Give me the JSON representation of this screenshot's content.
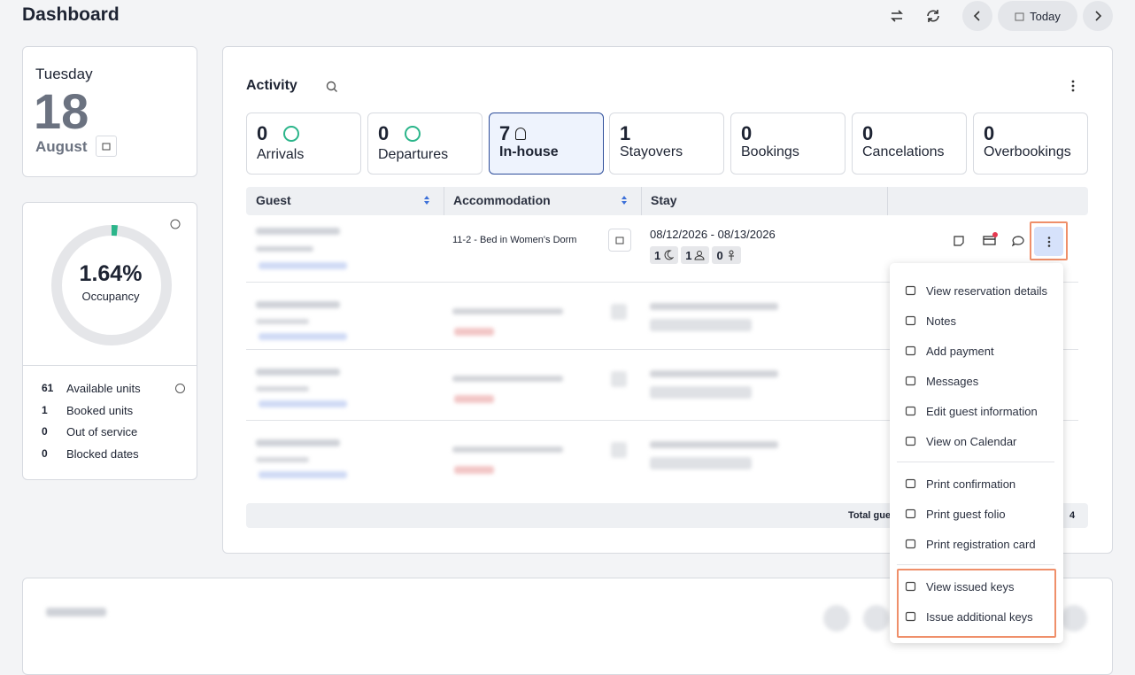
{
  "header": {
    "title": "Dashboard",
    "today": "Today"
  },
  "date_card": {
    "weekday": "Tuesday",
    "day": 18,
    "month": "August"
  },
  "occupancy": {
    "value": 1.64,
    "value_label": "1.64%",
    "label": "Occupancy",
    "stats": [
      {
        "value": 61,
        "label": "Available units"
      },
      {
        "value": 1,
        "label": "Booked units"
      },
      {
        "value": 0,
        "label": "Out of service"
      },
      {
        "value": 0,
        "label": "Blocked dates"
      }
    ]
  },
  "activity": {
    "title": "Activity",
    "tabs": [
      {
        "count": 0,
        "label": "Arrivals"
      },
      {
        "count": 0,
        "label": "Departures"
      },
      {
        "count": 7,
        "label": "In-house"
      },
      {
        "count": 1,
        "label": "Stayovers"
      },
      {
        "count": 0,
        "label": "Bookings"
      },
      {
        "count": 0,
        "label": "Cancelations"
      },
      {
        "count": 0,
        "label": "Overbookings"
      }
    ],
    "columns": [
      "Guest",
      "Accommodation",
      "Stay"
    ],
    "rows": [
      {
        "accommodation": "11-2 - Bed in Women's Dorm",
        "stay": "08/12/2026 - 08/13/2026",
        "nights": 1,
        "adults": 1,
        "children": 0
      }
    ],
    "footer": {
      "label": "Total guests",
      "value": 4
    }
  },
  "menu": {
    "items": [
      "View reservation details",
      "Notes",
      "Add payment",
      "Messages",
      "Edit guest information",
      "View on Calendar",
      "Print confirmation",
      "Print guest folio",
      "Print registration card",
      "View issued keys",
      "Issue additional keys"
    ]
  }
}
